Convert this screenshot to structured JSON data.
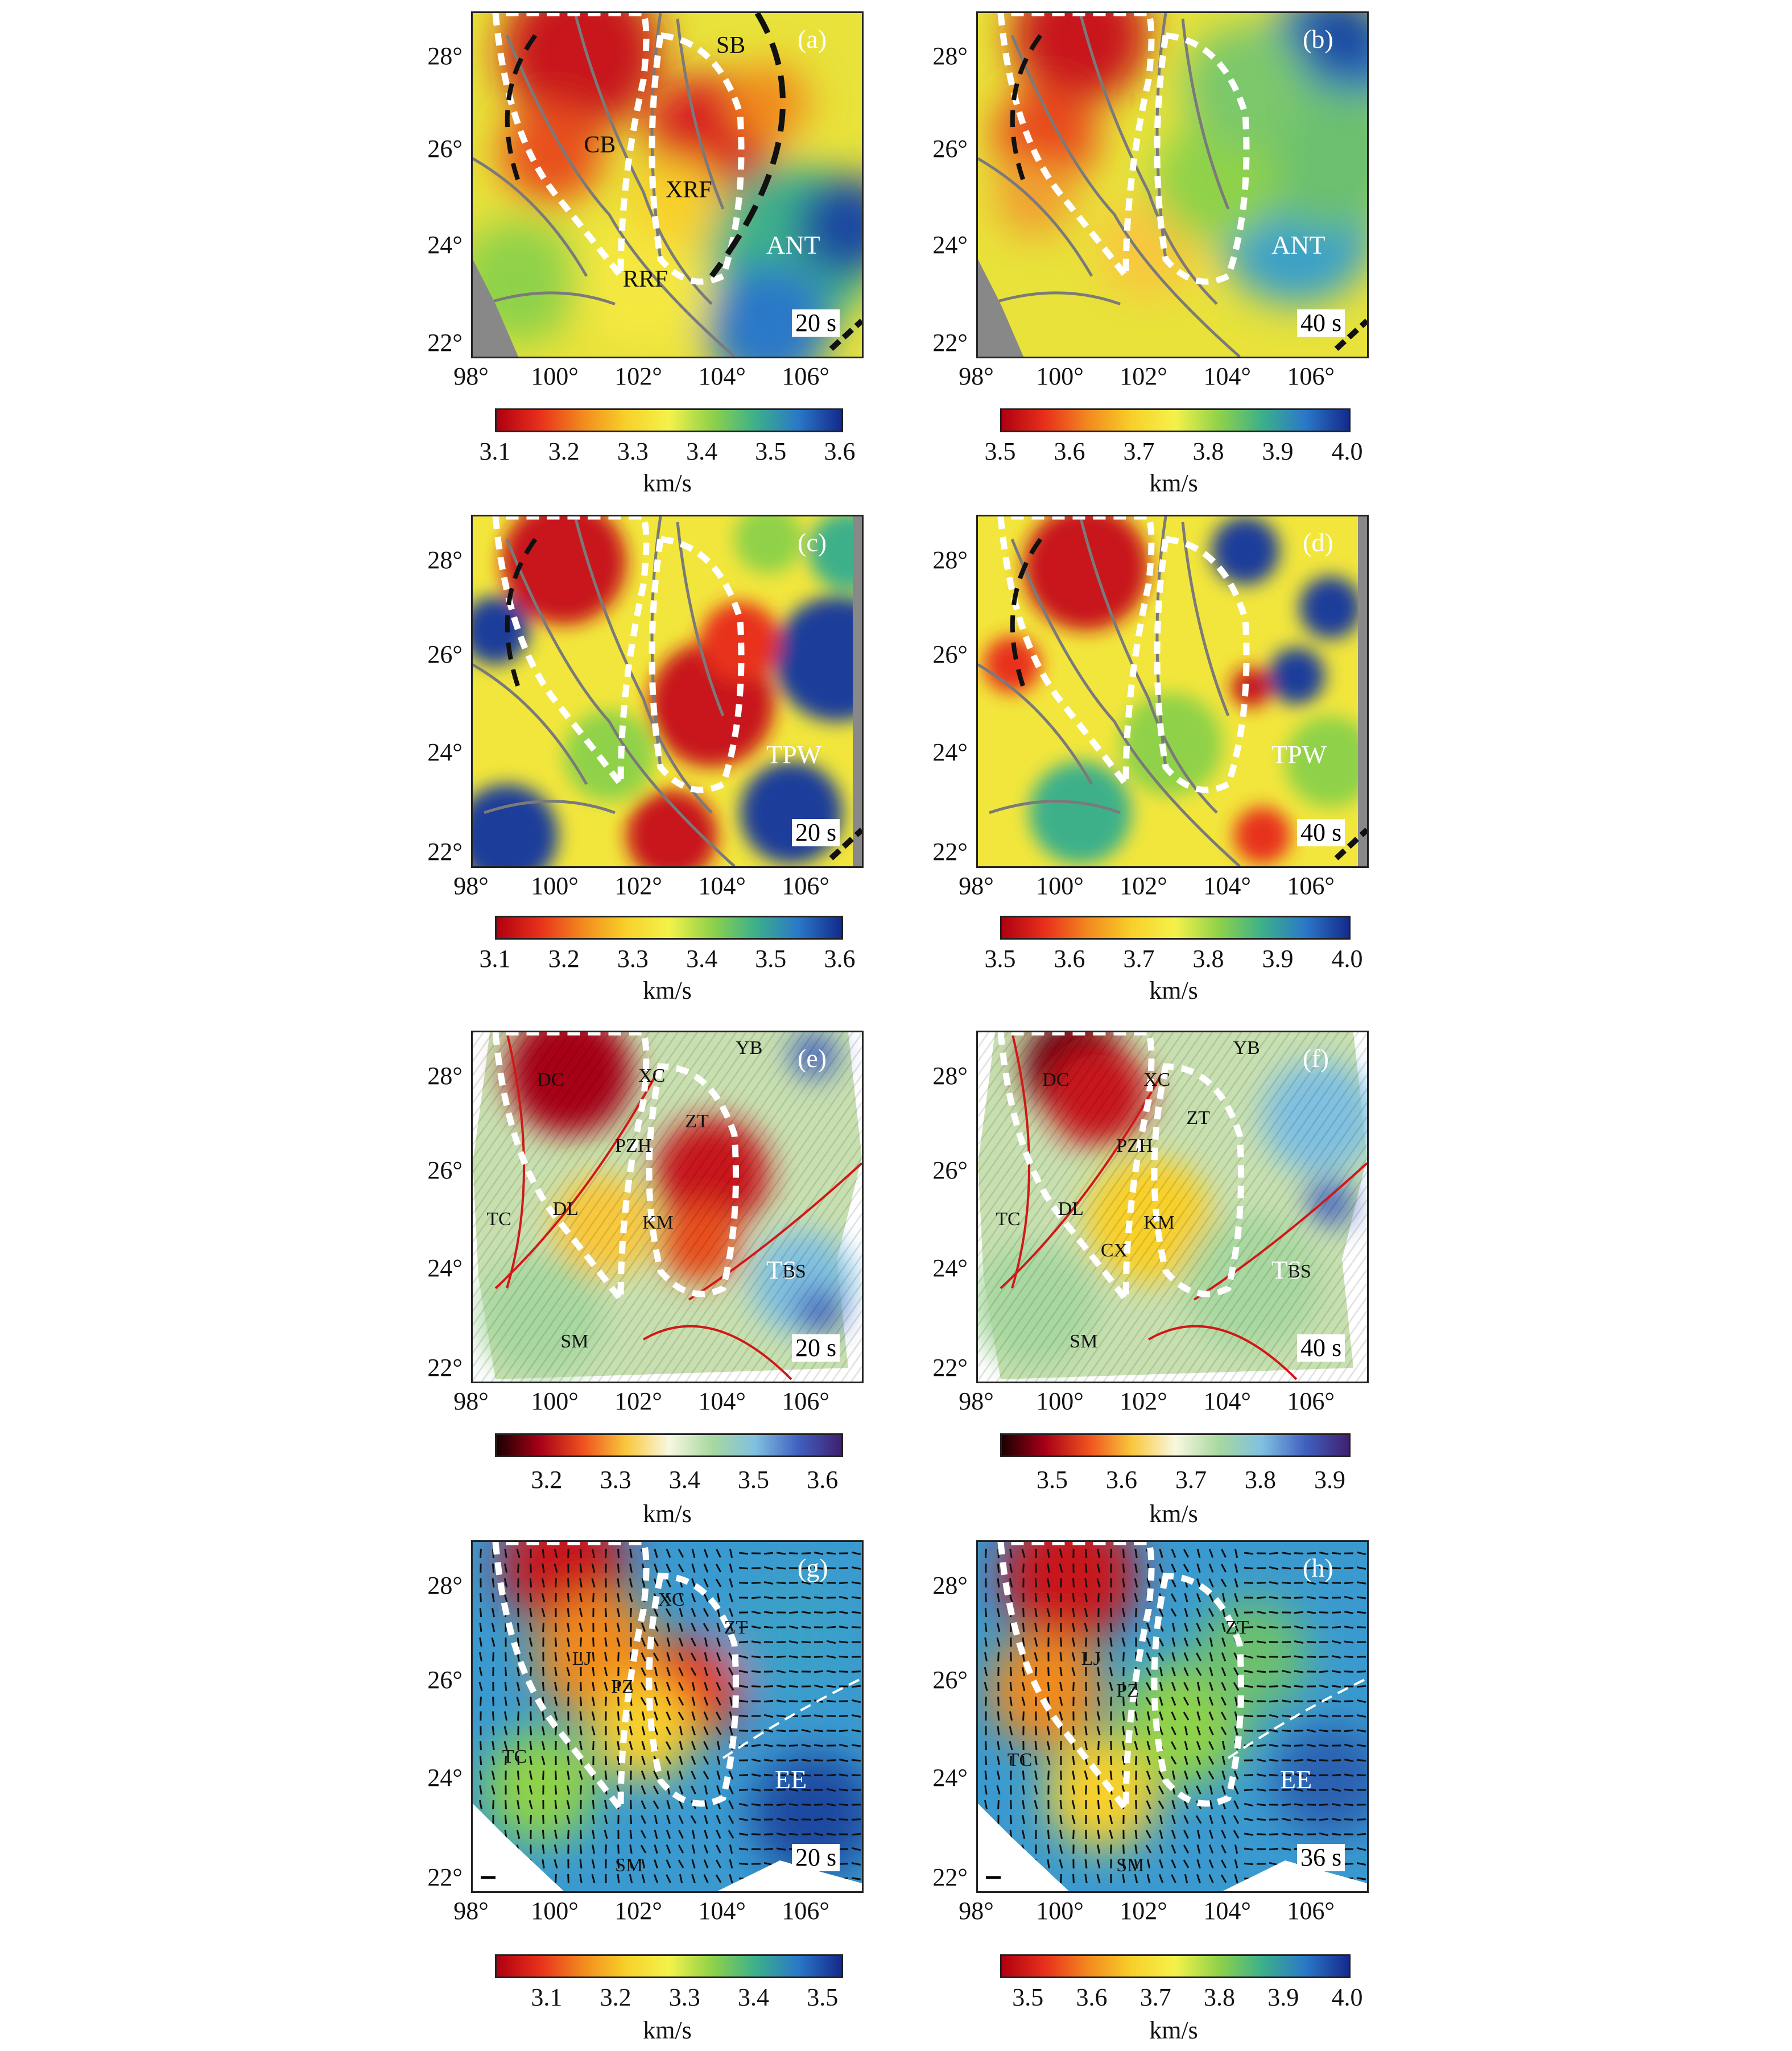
{
  "panels": [
    {
      "id": "a",
      "label": "(a)",
      "time": "20 s",
      "method": "ANT",
      "style": "smooth",
      "annotations": [
        "SB",
        "CB",
        "XRF",
        "RRF"
      ],
      "colorbar": {
        "ticks": [
          "3.1",
          "3.2",
          "3.3",
          "3.4",
          "3.5",
          "3.6"
        ],
        "unit": "km/s"
      }
    },
    {
      "id": "b",
      "label": "(b)",
      "time": "40 s",
      "method": "ANT",
      "style": "smooth",
      "annotations": [],
      "colorbar": {
        "ticks": [
          "3.5",
          "3.6",
          "3.7",
          "3.8",
          "3.9",
          "4.0"
        ],
        "unit": "km/s"
      }
    },
    {
      "id": "c",
      "label": "(c)",
      "time": "20 s",
      "method": "TPW",
      "style": "blotchy",
      "annotations": [],
      "colorbar": {
        "ticks": [
          "3.1",
          "3.2",
          "3.3",
          "3.4",
          "3.5",
          "3.6"
        ],
        "unit": "km/s"
      }
    },
    {
      "id": "d",
      "label": "(d)",
      "time": "40 s",
      "method": "TPW",
      "style": "blotchy",
      "annotations": [],
      "colorbar": {
        "ticks": [
          "3.5",
          "3.6",
          "3.7",
          "3.8",
          "3.9",
          "4.0"
        ],
        "unit": "km/s"
      }
    },
    {
      "id": "e",
      "label": "(e)",
      "time": "20 s",
      "method": "TS",
      "style": "relief",
      "annotations": [
        "YB",
        "DC",
        "XC",
        "ZT",
        "PZH",
        "DL",
        "TC",
        "KM",
        "BS",
        "SM"
      ],
      "colorbar": {
        "ticks": [
          "3.2",
          "3.3",
          "3.4",
          "3.5",
          "3.6"
        ],
        "unit": "km/s"
      }
    },
    {
      "id": "f",
      "label": "(f)",
      "time": "40 s",
      "method": "TS",
      "style": "relief",
      "annotations": [
        "YB",
        "DC",
        "XC",
        "ZT",
        "PZH",
        "DL",
        "TC",
        "CX",
        "KM",
        "BS",
        "SM"
      ],
      "colorbar": {
        "ticks": [
          "3.5",
          "3.6",
          "3.7",
          "3.8",
          "3.9"
        ],
        "unit": "km/s"
      }
    },
    {
      "id": "g",
      "label": "(g)",
      "time": "20 s",
      "method": "EE",
      "style": "aniso",
      "annotations": [
        "LJ",
        "PZ",
        "XC",
        "ZT",
        "TC",
        "SM"
      ],
      "colorbar": {
        "ticks": [
          "3.1",
          "3.2",
          "3.3",
          "3.4",
          "3.5"
        ],
        "unit": "km/s"
      }
    },
    {
      "id": "h",
      "label": "(h)",
      "time": "36 s",
      "method": "EE",
      "style": "aniso",
      "annotations": [
        "LJ",
        "PZ",
        "ZT",
        "TC",
        "SM"
      ],
      "colorbar": {
        "ticks": [
          "3.5",
          "3.6",
          "3.7",
          "3.8",
          "3.9",
          "4.0"
        ],
        "unit": "km/s"
      }
    }
  ],
  "axes": {
    "x_ticks": [
      "98°",
      "100°",
      "102°",
      "104°",
      "106°"
    ],
    "y_ticks": [
      "28°",
      "26°",
      "24°",
      "22°"
    ]
  },
  "colors": {
    "slow": "#c8141e",
    "mid": "#f2e63c",
    "fast": "#1f3c9a",
    "dashed_outline": "#ffffff",
    "fault": "#888888"
  }
}
